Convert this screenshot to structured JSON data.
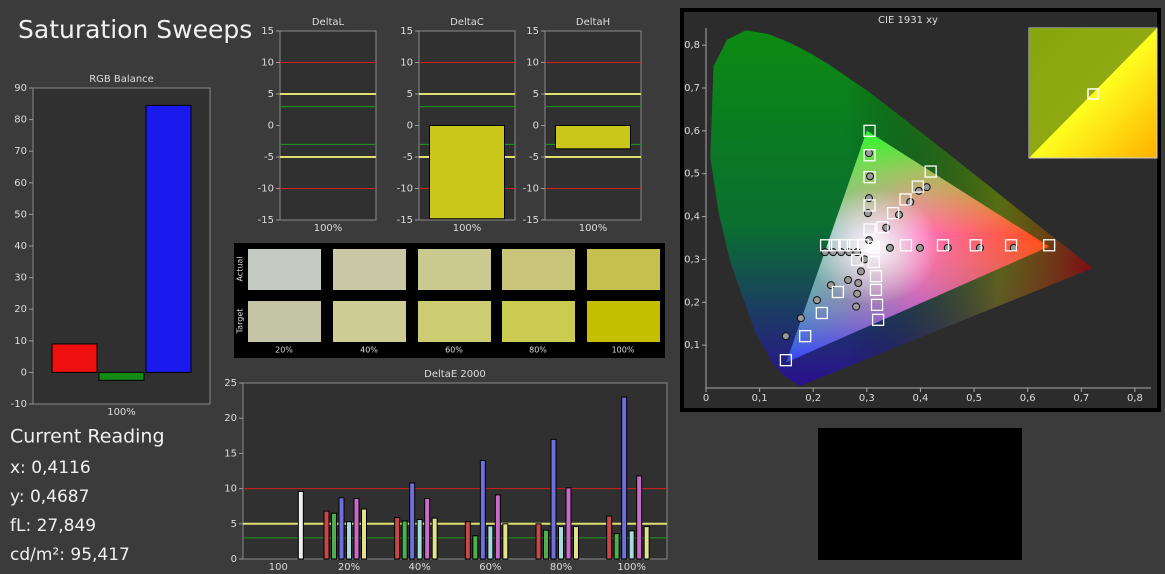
{
  "title": "Saturation Sweeps",
  "current_reading": {
    "title": "Current Reading",
    "lines": [
      "x: 0,4116",
      "y: 0,4687",
      "fL: 27,849",
      "cd/m²: 95,417"
    ]
  },
  "swatches": {
    "row_labels": [
      "Actual",
      "Target"
    ],
    "columns": [
      "20%",
      "40%",
      "60%",
      "80%",
      "100%"
    ],
    "actual": [
      "#c5cbc3",
      "#cac9a6",
      "#cac98f",
      "#c9c67a",
      "#c6c14e"
    ],
    "target": [
      "#c4c4a6",
      "#cccc94",
      "#cccc72",
      "#cbcb52",
      "#c4c000"
    ]
  },
  "chart_data": [
    {
      "type": "bar",
      "title": "RGB Balance",
      "categories": [
        "100%"
      ],
      "series": [
        {
          "color": "#ee1010",
          "values": [
            9
          ]
        },
        {
          "color": "#138a13",
          "values": [
            -2.5
          ]
        },
        {
          "color": "#1a1aee",
          "values": [
            84.5
          ]
        }
      ],
      "ylim": [
        -10,
        90
      ],
      "yticks": [
        -10,
        0,
        10,
        20,
        30,
        40,
        50,
        60,
        70,
        80,
        90
      ]
    },
    {
      "type": "bar",
      "title": "DeltaL",
      "categories": [
        "100%"
      ],
      "values": [
        0
      ],
      "color": "#c9c71a",
      "ylim": [
        -15,
        15
      ],
      "yticks": [
        -15,
        -10,
        -5,
        0,
        5,
        10,
        15
      ],
      "reference_lines": [
        {
          "value": 10,
          "color": "#d02020"
        },
        {
          "value": -10,
          "color": "#d02020"
        },
        {
          "value": 5,
          "color": "#e0e070"
        },
        {
          "value": -5,
          "color": "#e0e070"
        },
        {
          "value": 3,
          "color": "#1f9a1f"
        },
        {
          "value": -3,
          "color": "#1f9a1f"
        }
      ]
    },
    {
      "type": "bar",
      "title": "DeltaC",
      "categories": [
        "100%"
      ],
      "values": [
        -14.8
      ],
      "color": "#c9c71a",
      "ylim": [
        -15,
        15
      ],
      "yticks": [
        -15,
        -10,
        -5,
        0,
        5,
        10,
        15
      ],
      "reference_lines": [
        {
          "value": 10,
          "color": "#d02020"
        },
        {
          "value": -10,
          "color": "#d02020"
        },
        {
          "value": 5,
          "color": "#e0e070"
        },
        {
          "value": -5,
          "color": "#e0e070"
        },
        {
          "value": 3,
          "color": "#1f9a1f"
        },
        {
          "value": -3,
          "color": "#1f9a1f"
        }
      ]
    },
    {
      "type": "bar",
      "title": "DeltaH",
      "categories": [
        "100%"
      ],
      "values": [
        -3.7
      ],
      "color": "#c9c71a",
      "ylim": [
        -15,
        15
      ],
      "yticks": [
        -15,
        -10,
        -5,
        0,
        5,
        10,
        15
      ],
      "reference_lines": [
        {
          "value": 10,
          "color": "#d02020"
        },
        {
          "value": -10,
          "color": "#d02020"
        },
        {
          "value": 5,
          "color": "#e0e070"
        },
        {
          "value": -5,
          "color": "#e0e070"
        },
        {
          "value": 3,
          "color": "#1f9a1f"
        },
        {
          "value": -3,
          "color": "#1f9a1f"
        }
      ]
    },
    {
      "type": "bar",
      "title": "DeltaE 2000",
      "categories": [
        "100",
        "20%",
        "40%",
        "60%",
        "80%",
        "100%"
      ],
      "series": [
        {
          "color": "#c84848",
          "values": [
            null,
            6.8,
            5.9,
            5.3,
            5.0,
            6.1
          ]
        },
        {
          "color": "#4fae4f",
          "values": [
            null,
            6.5,
            5.4,
            3.3,
            4.1,
            3.6
          ]
        },
        {
          "color": "#7070dc",
          "values": [
            null,
            8.7,
            10.8,
            14.0,
            17.0,
            23.0
          ]
        },
        {
          "color": "#a8dcdc",
          "values": [
            null,
            5.3,
            5.6,
            4.7,
            4.6,
            4.0
          ]
        },
        {
          "color": "#cc6acc",
          "values": [
            null,
            8.6,
            8.6,
            9.1,
            10.1,
            11.8
          ]
        },
        {
          "color": "#e2e28a",
          "values": [
            null,
            7.1,
            5.8,
            5.0,
            4.6,
            4.6
          ]
        },
        {
          "color": "#efefef",
          "values": [
            9.6,
            null,
            null,
            null,
            null,
            null
          ]
        }
      ],
      "ylim": [
        0,
        25
      ],
      "yticks": [
        0,
        5,
        10,
        15,
        20,
        25
      ],
      "reference_lines": [
        {
          "value": 10,
          "color": "#d02020"
        },
        {
          "value": 5,
          "color": "#e0e070"
        },
        {
          "value": 3,
          "color": "#1f9a1f"
        }
      ]
    },
    {
      "type": "scatter",
      "title": "CIE 1931 xy",
      "xlim": [
        0,
        0.83
      ],
      "ylim": [
        0,
        0.84
      ],
      "xticks": [
        0,
        {
          "value": 0.1,
          "label": "0,1"
        },
        {
          "value": 0.2,
          "label": "0,2"
        },
        {
          "value": 0.3,
          "label": "0,3"
        },
        {
          "value": 0.4,
          "label": "0,4"
        },
        {
          "value": 0.5,
          "label": "0,5"
        },
        {
          "value": 0.6,
          "label": "0,6"
        },
        {
          "value": 0.7,
          "label": "0,7"
        },
        {
          "value": 0.8,
          "label": "0,8"
        }
      ],
      "yticks": [
        {
          "value": 0.1,
          "label": "0,1"
        },
        {
          "value": 0.2,
          "label": "0,2"
        },
        {
          "value": 0.3,
          "label": "0,3"
        },
        {
          "value": 0.4,
          "label": "0,4"
        },
        {
          "value": 0.5,
          "label": "0,5"
        },
        {
          "value": 0.6,
          "label": "0,6"
        },
        {
          "value": 0.7,
          "label": "0,7"
        },
        {
          "value": 0.8,
          "label": "0,8"
        }
      ],
      "series": [
        {
          "marker": "circle",
          "color": "#9a9a9a",
          "x": [
            0.343,
            0.399,
            0.451,
            0.511,
            0.574,
            0.304,
            0.302,
            0.304,
            0.306,
            0.304,
            0.265,
            0.233,
            0.207,
            0.177,
            0.149,
            0.282,
            0.267,
            0.252,
            0.237,
            0.222,
            0.296,
            0.289,
            0.284,
            0.282,
            0.28,
            0.336,
            0.36,
            0.381,
            0.397,
            0.4116
          ],
          "y": [
            0.327,
            0.327,
            0.327,
            0.327,
            0.327,
            0.345,
            0.408,
            0.443,
            0.494,
            0.548,
            0.252,
            0.24,
            0.205,
            0.163,
            0.121,
            0.317,
            0.317,
            0.317,
            0.317,
            0.317,
            0.3,
            0.272,
            0.245,
            0.22,
            0.19,
            0.374,
            0.404,
            0.434,
            0.46,
            0.4687
          ]
        },
        {
          "marker": "square",
          "color": "#ffffff",
          "x": [
            0.313,
            0.373,
            0.442,
            0.503,
            0.569,
            0.64,
            0.305,
            0.305,
            0.305,
            0.305,
            0.305,
            0.282,
            0.246,
            0.216,
            0.185,
            0.149,
            0.293,
            0.274,
            0.258,
            0.24,
            0.224,
            0.313,
            0.317,
            0.317,
            0.319,
            0.321,
            0.329,
            0.349,
            0.372,
            0.395,
            0.419
          ],
          "y": [
            0.329,
            0.333,
            0.333,
            0.333,
            0.333,
            0.333,
            0.37,
            0.426,
            0.492,
            0.543,
            0.6,
            0.299,
            0.224,
            0.175,
            0.121,
            0.065,
            0.333,
            0.333,
            0.333,
            0.333,
            0.333,
            0.294,
            0.261,
            0.229,
            0.194,
            0.159,
            0.375,
            0.408,
            0.44,
            0.47,
            0.505
          ]
        }
      ]
    }
  ]
}
